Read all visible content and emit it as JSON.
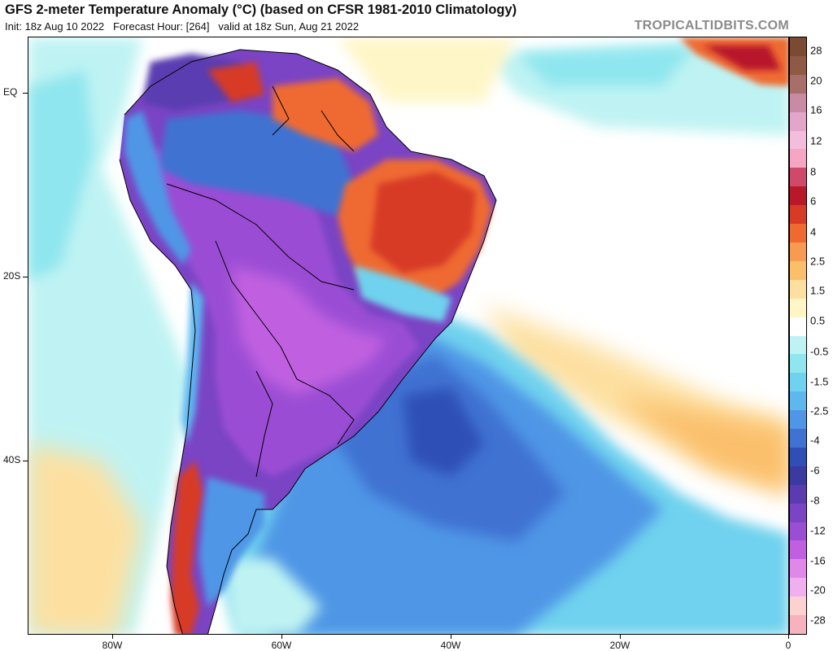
{
  "header": {
    "title": "GFS 2-meter Temperature Anomaly (°C) (based on CFSR 1981-2010 Climatology)",
    "init": "Init: 18z Aug 10 2022",
    "forecast_hour": "Forecast Hour: [264]",
    "valid": "valid at 18z Sun, Aug 21 2022",
    "brand": "TROPICALTIDBITS.COM"
  },
  "axes": {
    "lat_labels": [
      "EQ",
      "20S",
      "40S"
    ],
    "lon_labels": [
      "80W",
      "60W",
      "40W",
      "20W",
      "0"
    ]
  },
  "colorbar": {
    "labels": [
      "28",
      "20",
      "16",
      "12",
      "8",
      "6",
      "4",
      "2.5",
      "1.5",
      "0.5",
      "-0.5",
      "-1.5",
      "-2.5",
      "-4",
      "-6",
      "-8",
      "-12",
      "-16",
      "-20",
      "-28"
    ],
    "colors": [
      "#7a4a32",
      "#8e5a45",
      "#a86e6a",
      "#c98aa3",
      "#e2a6c9",
      "#f3bddc",
      "#f6a6c2",
      "#cf4a6a",
      "#b8182a",
      "#d73b25",
      "#ef6a30",
      "#f79a52",
      "#fbbf6c",
      "#fde0a0",
      "#fff6c8",
      "#ffffff",
      "#bff3f3",
      "#8fe6ef",
      "#6fd2ee",
      "#5fb7f0",
      "#4f96e6",
      "#3f72d2",
      "#2f4fb6",
      "#3a3aa0",
      "#5a3cb0",
      "#7a44c4",
      "#9a4ed4",
      "#c060e0",
      "#e088ea",
      "#f0b0ef",
      "#fbd2cf",
      "#f6b2bd"
    ]
  },
  "map": {
    "colors": {
      "ocean_neutral": "#ffffff",
      "pale_cyan": "#bff3f3",
      "cyan": "#8fe6ef",
      "light_blue": "#6fd2ee",
      "blue": "#5fb7f0",
      "mid_blue": "#4f96e6",
      "deep_blue": "#3f72d2",
      "navy": "#2f4fb6",
      "purple": "#7a44c4",
      "violet": "#9a4ed4",
      "warm_cream": "#fff6c8",
      "warm_yellow": "#fde0a0",
      "warm_orange": "#fbbf6c",
      "orange": "#ef6a30",
      "red": "#d73b25",
      "dark_red": "#b8182a",
      "maroon": "#8e3a45"
    }
  }
}
